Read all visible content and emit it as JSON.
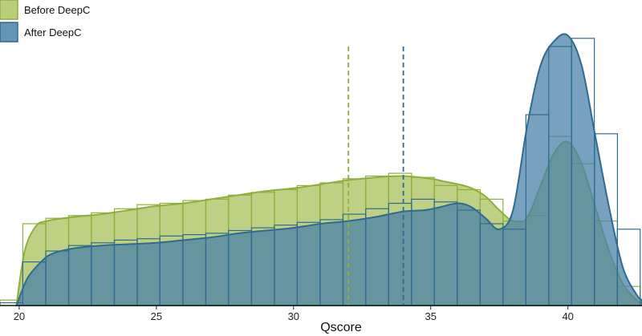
{
  "chart_data": {
    "type": "histogram-density",
    "title": "",
    "xlabel": "Qscore",
    "ylabel": "",
    "xlim": [
      19.3,
      42.7
    ],
    "ylim": [
      0,
      1.0
    ],
    "x_ticks": [
      20,
      25,
      30,
      35,
      40
    ],
    "bin_width": 0.833,
    "legend": {
      "placement": "top-left",
      "entries": [
        "Before DeepC",
        "After DeepC"
      ]
    },
    "series": [
      {
        "name": "Before DeepC",
        "color": "#a8c05a",
        "edge_color": "#8fae3a",
        "mean": 32.0,
        "bin_starts": [
          19.3,
          20.13,
          20.97,
          21.8,
          22.63,
          23.47,
          24.3,
          25.13,
          25.97,
          26.8,
          27.63,
          28.47,
          29.3,
          30.13,
          30.97,
          31.8,
          32.63,
          33.47,
          34.3,
          35.13,
          35.97,
          36.8,
          37.63,
          38.47,
          39.3,
          40.13,
          40.97,
          41.8
        ],
        "bin_values": [
          0.02,
          0.3,
          0.32,
          0.33,
          0.34,
          0.355,
          0.37,
          0.375,
          0.385,
          0.39,
          0.405,
          0.415,
          0.425,
          0.44,
          0.45,
          0.465,
          0.475,
          0.485,
          0.47,
          0.44,
          0.425,
          0.39,
          0.31,
          0.33,
          0.62,
          0.52,
          0.31,
          0.07
        ],
        "density_x": [
          19.9,
          20.2,
          20.6,
          21.0,
          22,
          23,
          24,
          25,
          26,
          27,
          28,
          29,
          30,
          31,
          32,
          33,
          34,
          35,
          35.5,
          36,
          36.5,
          37,
          37.5,
          38,
          38.5,
          39,
          39.5,
          40,
          40.5,
          41,
          41.5,
          42,
          42.5,
          42.7
        ],
        "density_y": [
          0.0,
          0.2,
          0.29,
          0.31,
          0.325,
          0.335,
          0.35,
          0.365,
          0.375,
          0.39,
          0.405,
          0.42,
          0.43,
          0.445,
          0.46,
          0.47,
          0.475,
          0.465,
          0.455,
          0.445,
          0.43,
          0.4,
          0.35,
          0.31,
          0.32,
          0.44,
          0.56,
          0.6,
          0.52,
          0.36,
          0.2,
          0.08,
          0.02,
          0.01
        ]
      },
      {
        "name": "After DeepC",
        "color": "#4a82a8",
        "edge_color": "#2f6b8f",
        "mean": 34.0,
        "bin_starts": [
          19.3,
          20.13,
          20.97,
          21.8,
          22.63,
          23.47,
          24.3,
          25.13,
          25.97,
          26.8,
          27.63,
          28.47,
          29.3,
          30.13,
          30.97,
          31.8,
          32.63,
          33.47,
          34.3,
          35.13,
          35.97,
          36.8,
          37.63,
          38.47,
          39.3,
          40.13,
          40.97,
          41.8
        ],
        "bin_values": [
          0.01,
          0.16,
          0.2,
          0.22,
          0.23,
          0.24,
          0.245,
          0.255,
          0.26,
          0.265,
          0.275,
          0.285,
          0.295,
          0.305,
          0.315,
          0.335,
          0.355,
          0.375,
          0.39,
          0.38,
          0.35,
          0.3,
          0.28,
          0.7,
          0.95,
          0.98,
          0.63,
          0.28
        ],
        "density_x": [
          19.9,
          20.3,
          20.8,
          21.2,
          22,
          23,
          24,
          25,
          26,
          27,
          28,
          29,
          30,
          31,
          32,
          33,
          34,
          34.8,
          35.3,
          36,
          36.5,
          37,
          37.5,
          38,
          38.5,
          39,
          39.5,
          40,
          40.5,
          41,
          41.5,
          42,
          42.5,
          42.7
        ],
        "density_y": [
          0.0,
          0.1,
          0.16,
          0.19,
          0.21,
          0.22,
          0.225,
          0.23,
          0.24,
          0.25,
          0.265,
          0.275,
          0.285,
          0.3,
          0.31,
          0.325,
          0.345,
          0.35,
          0.36,
          0.375,
          0.36,
          0.32,
          0.28,
          0.35,
          0.65,
          0.88,
          0.97,
          0.99,
          0.88,
          0.62,
          0.36,
          0.14,
          0.04,
          0.02
        ]
      }
    ]
  }
}
